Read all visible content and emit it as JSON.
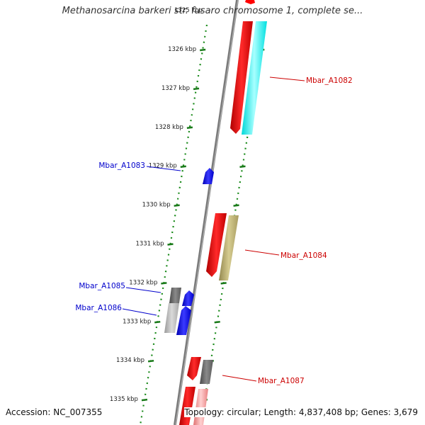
{
  "title": "Methanosarcina barkeri str. fusaro chromosome 1, complete se...",
  "accession": "Accession: NC_007355",
  "topology": "Topology: circular; Length: 4,837,408 bp; Genes: 3,679",
  "ticks": [
    "1326 kbp",
    "1327 kbp",
    "1328 kbp",
    "1329 kbp",
    "1330 kbp",
    "1331 kbp",
    "1332 kbp",
    "1333 kbp",
    "1334 kbp",
    "1335 kbp"
  ],
  "gene_labels": [
    {
      "name": "Mbar_A1082",
      "strand": "forward"
    },
    {
      "name": "Mbar_A1083",
      "strand": "reverse"
    },
    {
      "name": "Mbar_A1084",
      "strand": "forward"
    },
    {
      "name": "Mbar_A1085",
      "strand": "reverse"
    },
    {
      "name": "Mbar_A1086",
      "strand": "reverse"
    },
    {
      "name": "Mbar_A1087",
      "strand": "forward"
    }
  ],
  "colors": {
    "forward_label": "#cc0000",
    "reverse_label": "#0000cc",
    "gene_red": "#ff0000",
    "gene_blue": "#0000ff",
    "gene_cyan": "#00ffff",
    "gene_khaki": "#b8ad70",
    "gene_gray": "#6e6e6e",
    "backbone": "#888888",
    "tick_green": "#1a7a1a"
  }
}
